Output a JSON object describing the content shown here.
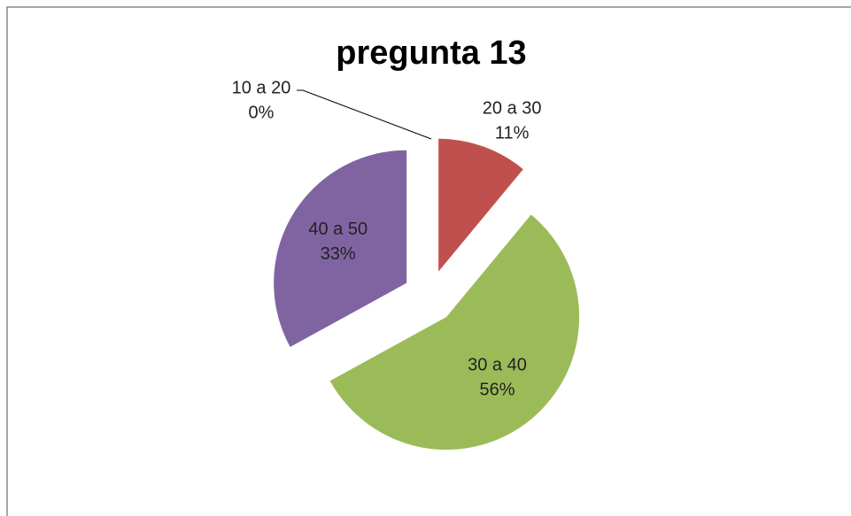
{
  "chart_data": {
    "type": "pie",
    "title": "pregunta 13",
    "categories": [
      "10 a 20",
      "20 a 30",
      "30 a 40",
      "40 a 50"
    ],
    "values": [
      0,
      11,
      56,
      33
    ],
    "value_labels": [
      "0%",
      "11%",
      "56%",
      "33%"
    ],
    "colors": [
      "#4f81bd",
      "#c0504d",
      "#9bbb59",
      "#8064a2"
    ],
    "exploded": true
  }
}
